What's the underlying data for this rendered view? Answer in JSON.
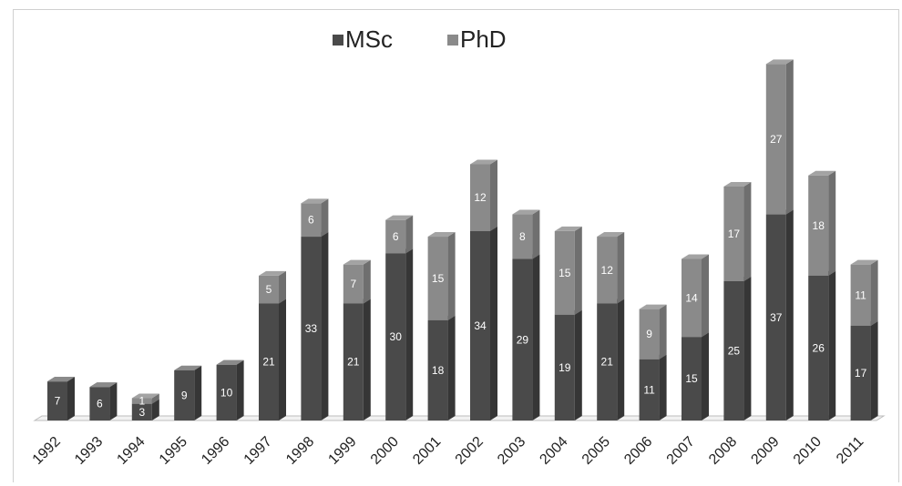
{
  "chart_data": {
    "type": "bar",
    "stacked": true,
    "style": "3d-column",
    "categories": [
      "1992",
      "1993",
      "1994",
      "1995",
      "1996",
      "1997",
      "1998",
      "1999",
      "2000",
      "2001",
      "2002",
      "2003",
      "2004",
      "2005",
      "2006",
      "2007",
      "2008",
      "2009",
      "2010",
      "2011"
    ],
    "series": [
      {
        "name": "MSc",
        "values": [
          7,
          6,
          3,
          9,
          10,
          21,
          33,
          21,
          30,
          18,
          34,
          29,
          19,
          21,
          11,
          15,
          25,
          37,
          26,
          17
        ],
        "color": "#4a4a4a"
      },
      {
        "name": "PhD",
        "values": [
          0,
          0,
          1,
          0,
          0,
          5,
          6,
          7,
          6,
          15,
          12,
          8,
          15,
          12,
          9,
          14,
          17,
          27,
          18,
          11
        ],
        "color": "#8a8a8a"
      }
    ],
    "ylim": [
      0,
      66
    ],
    "grid": false,
    "legend_position": "top-center",
    "title": "",
    "xlabel": "",
    "ylabel": ""
  }
}
